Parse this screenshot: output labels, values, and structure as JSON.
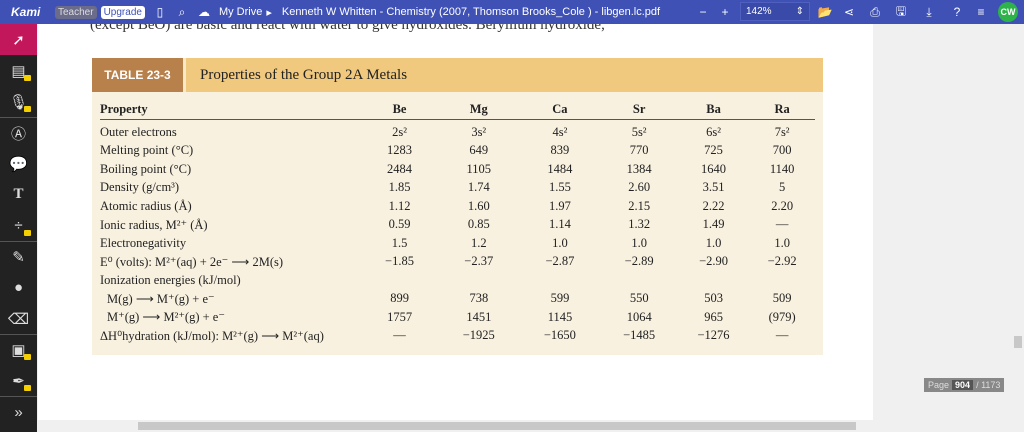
{
  "topbar": {
    "logo": "Kami",
    "teacher": "Teacher",
    "upgrade": "Upgrade",
    "drive": "My Drive",
    "doc_title": "Kenneth W Whitten - Chemistry (2007, Thomson Brooks_Cole ) - libgen.lc.pdf",
    "zoom": "142%",
    "avatar": "CW"
  },
  "doc": {
    "cut_text": "(except BeO) are basic and react with water to give hydroxides. Beryllium hydroxide,",
    "table_tag": "TABLE 23-3",
    "table_title": "Properties of the Group 2A Metals",
    "header": [
      "Property",
      "Be",
      "Mg",
      "Ca",
      "Sr",
      "Ba",
      "Ra"
    ],
    "rows": [
      {
        "label": "Outer electrons",
        "values": [
          "2s²",
          "3s²",
          "4s²",
          "5s²",
          "6s²",
          "7s²"
        ]
      },
      {
        "label": "Melting point (°C)",
        "values": [
          "1283",
          "649",
          "839",
          "770",
          "725",
          "700"
        ]
      },
      {
        "label": "Boiling point (°C)",
        "values": [
          "2484",
          "1105",
          "1484",
          "1384",
          "1640",
          "1140"
        ]
      },
      {
        "label": "Density (g/cm³)",
        "values": [
          "1.85",
          "1.74",
          "1.55",
          "2.60",
          "3.51",
          "5"
        ]
      },
      {
        "label": "Atomic radius (Å)",
        "values": [
          "1.12",
          "1.60",
          "1.97",
          "2.15",
          "2.22",
          "2.20"
        ]
      },
      {
        "label": "Ionic radius, M²⁺ (Å)",
        "values": [
          "0.59",
          "0.85",
          "1.14",
          "1.32",
          "1.49",
          "—"
        ]
      },
      {
        "label": "Electronegativity",
        "values": [
          "1.5",
          "1.2",
          "1.0",
          "1.0",
          "1.0",
          "1.0"
        ]
      },
      {
        "label": "E⁰ (volts): M²⁺(aq) + 2e⁻ ⟶ 2M(s)",
        "values": [
          "−1.85",
          "−2.37",
          "−2.87",
          "−2.89",
          "−2.90",
          "−2.92"
        ]
      },
      {
        "label": "Ionization energies (kJ/mol)",
        "values": [
          "",
          "",
          "",
          "",
          "",
          ""
        ]
      },
      {
        "label": "M(g) ⟶ M⁺(g) + e⁻",
        "values": [
          "899",
          "738",
          "599",
          "550",
          "503",
          "509"
        ]
      },
      {
        "label": "M⁺(g) ⟶ M²⁺(g) + e⁻",
        "values": [
          "1757",
          "1451",
          "1145",
          "1064",
          "965",
          "(979)"
        ]
      },
      {
        "label": "ΔH⁰hydration (kJ/mol): M²⁺(g) ⟶ M²⁺(aq)",
        "values": [
          "—",
          "−1925",
          "−1650",
          "−1485",
          "−1276",
          "—"
        ]
      }
    ]
  },
  "pager": {
    "label": "Page",
    "current": "904",
    "total": "/ 1173"
  }
}
